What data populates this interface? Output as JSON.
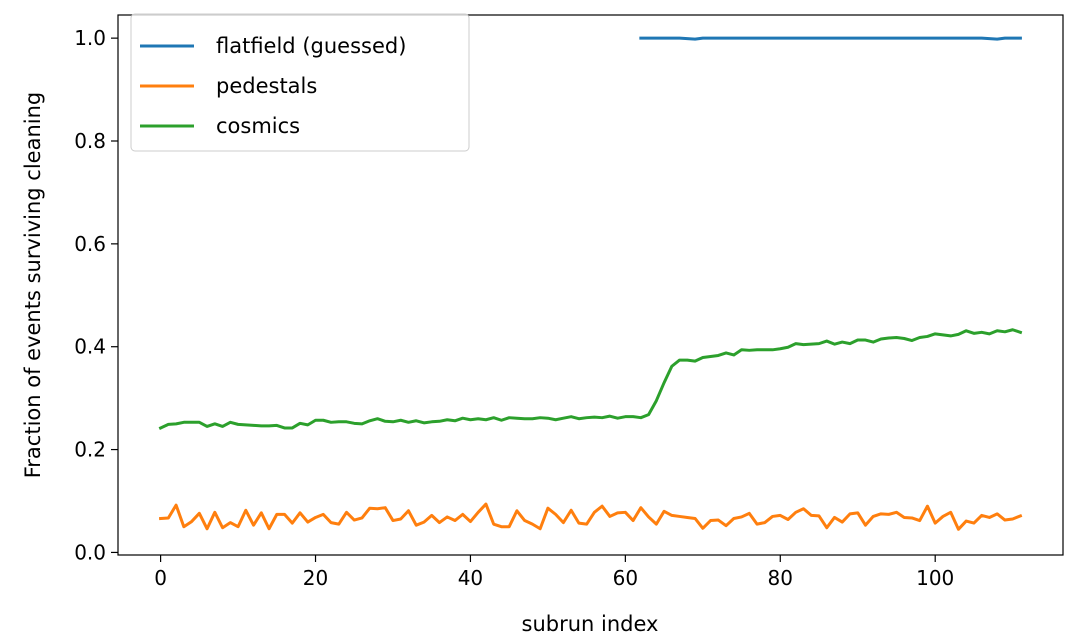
{
  "chart_data": {
    "type": "line",
    "title": "",
    "xlabel": "subrun index",
    "ylabel": "Fraction of events surviving cleaning",
    "xlim": [
      -5.5,
      116.5
    ],
    "ylim": [
      -0.005,
      1.045
    ],
    "x_ticks": [
      0,
      20,
      40,
      60,
      80,
      100
    ],
    "y_ticks": [
      0.0,
      0.2,
      0.4,
      0.6,
      0.8,
      1.0
    ],
    "x_tick_labels": [
      "0",
      "20",
      "40",
      "60",
      "80",
      "100"
    ],
    "y_tick_labels": [
      "0.0",
      "0.2",
      "0.4",
      "0.6",
      "0.8",
      "1.0"
    ],
    "grid": false,
    "legend_position": "top-left",
    "series": [
      {
        "name": "flatfield (guessed)",
        "color": "#1f77b4",
        "x": [
          62,
          63,
          64,
          65,
          66,
          67,
          68,
          69,
          70,
          71,
          72,
          73,
          74,
          75,
          76,
          77,
          78,
          79,
          80,
          81,
          82,
          83,
          84,
          85,
          86,
          87,
          88,
          89,
          90,
          91,
          92,
          93,
          94,
          95,
          96,
          97,
          98,
          99,
          100,
          101,
          102,
          103,
          104,
          105,
          106,
          107,
          108,
          109,
          110,
          111
        ],
        "y": [
          1.0,
          1.0,
          1.0,
          1.0,
          1.0,
          1.0,
          0.999,
          0.998,
          1.0,
          1.0,
          1.0,
          1.0,
          1.0,
          1.0,
          1.0,
          1.0,
          1.0,
          1.0,
          1.0,
          1.0,
          1.0,
          1.0,
          1.0,
          1.0,
          1.0,
          1.0,
          1.0,
          1.0,
          1.0,
          1.0,
          1.0,
          1.0,
          1.0,
          1.0,
          1.0,
          1.0,
          1.0,
          1.0,
          1.0,
          1.0,
          1.0,
          1.0,
          1.0,
          1.0,
          1.0,
          0.999,
          0.998,
          1.0,
          1.0,
          1.0
        ]
      },
      {
        "name": "pedestals",
        "color": "#ff7f0e",
        "x": [
          0,
          1,
          2,
          3,
          4,
          5,
          6,
          7,
          8,
          9,
          10,
          11,
          12,
          13,
          14,
          15,
          16,
          17,
          18,
          19,
          20,
          21,
          22,
          23,
          24,
          25,
          26,
          27,
          28,
          29,
          30,
          31,
          32,
          33,
          34,
          35,
          36,
          37,
          38,
          39,
          40,
          41,
          42,
          43,
          44,
          45,
          46,
          47,
          48,
          49,
          50,
          51,
          52,
          53,
          54,
          55,
          56,
          57,
          58,
          59,
          60,
          61,
          62,
          63,
          64,
          65,
          66,
          67,
          68,
          69,
          70,
          71,
          72,
          73,
          74,
          75,
          76,
          77,
          78,
          79,
          80,
          81,
          82,
          83,
          84,
          85,
          86,
          87,
          88,
          89,
          90,
          91,
          92,
          93,
          94,
          95,
          96,
          97,
          98,
          99,
          100,
          101,
          102,
          103,
          104,
          105,
          106,
          107,
          108,
          109,
          110,
          111
        ],
        "y": [
          0.066,
          0.067,
          0.092,
          0.05,
          0.06,
          0.076,
          0.046,
          0.078,
          0.048,
          0.058,
          0.05,
          0.082,
          0.053,
          0.077,
          0.046,
          0.074,
          0.074,
          0.057,
          0.077,
          0.059,
          0.068,
          0.074,
          0.058,
          0.055,
          0.078,
          0.063,
          0.067,
          0.086,
          0.085,
          0.087,
          0.062,
          0.065,
          0.081,
          0.053,
          0.059,
          0.072,
          0.058,
          0.069,
          0.062,
          0.074,
          0.06,
          0.078,
          0.094,
          0.055,
          0.05,
          0.05,
          0.081,
          0.062,
          0.055,
          0.046,
          0.086,
          0.074,
          0.058,
          0.082,
          0.057,
          0.055,
          0.078,
          0.09,
          0.07,
          0.077,
          0.078,
          0.062,
          0.087,
          0.069,
          0.055,
          0.08,
          0.072,
          0.07,
          0.068,
          0.066,
          0.047,
          0.062,
          0.063,
          0.052,
          0.066,
          0.069,
          0.076,
          0.055,
          0.058,
          0.07,
          0.072,
          0.064,
          0.078,
          0.085,
          0.072,
          0.071,
          0.048,
          0.068,
          0.059,
          0.075,
          0.077,
          0.053,
          0.07,
          0.075,
          0.074,
          0.078,
          0.068,
          0.067,
          0.062,
          0.09,
          0.057,
          0.07,
          0.078,
          0.045,
          0.061,
          0.057,
          0.072,
          0.068,
          0.075,
          0.063,
          0.065,
          0.071
        ]
      },
      {
        "name": "cosmics",
        "color": "#2ca02c",
        "x": [
          0,
          1,
          2,
          3,
          4,
          5,
          6,
          7,
          8,
          9,
          10,
          11,
          12,
          13,
          14,
          15,
          16,
          17,
          18,
          19,
          20,
          21,
          22,
          23,
          24,
          25,
          26,
          27,
          28,
          29,
          30,
          31,
          32,
          33,
          34,
          35,
          36,
          37,
          38,
          39,
          40,
          41,
          42,
          43,
          44,
          45,
          46,
          47,
          48,
          49,
          50,
          51,
          52,
          53,
          54,
          55,
          56,
          57,
          58,
          59,
          60,
          61,
          62,
          63,
          64,
          65,
          66,
          67,
          68,
          69,
          70,
          71,
          72,
          73,
          74,
          75,
          76,
          77,
          78,
          79,
          80,
          81,
          82,
          83,
          84,
          85,
          86,
          87,
          88,
          89,
          90,
          91,
          92,
          93,
          94,
          95,
          96,
          97,
          98,
          99,
          100,
          101,
          102,
          103,
          104,
          105,
          106,
          107,
          108,
          109,
          110,
          111
        ],
        "y": [
          0.242,
          0.249,
          0.25,
          0.253,
          0.253,
          0.253,
          0.245,
          0.25,
          0.245,
          0.253,
          0.249,
          0.248,
          0.247,
          0.246,
          0.246,
          0.247,
          0.242,
          0.242,
          0.251,
          0.248,
          0.257,
          0.257,
          0.253,
          0.254,
          0.254,
          0.251,
          0.25,
          0.256,
          0.26,
          0.255,
          0.254,
          0.257,
          0.253,
          0.256,
          0.252,
          0.254,
          0.255,
          0.258,
          0.256,
          0.261,
          0.258,
          0.26,
          0.258,
          0.262,
          0.257,
          0.262,
          0.261,
          0.26,
          0.26,
          0.262,
          0.261,
          0.258,
          0.261,
          0.264,
          0.26,
          0.262,
          0.263,
          0.262,
          0.265,
          0.261,
          0.264,
          0.264,
          0.262,
          0.268,
          0.295,
          0.33,
          0.362,
          0.374,
          0.374,
          0.372,
          0.379,
          0.381,
          0.383,
          0.388,
          0.384,
          0.394,
          0.393,
          0.394,
          0.394,
          0.394,
          0.396,
          0.399,
          0.406,
          0.404,
          0.405,
          0.406,
          0.411,
          0.405,
          0.409,
          0.406,
          0.413,
          0.413,
          0.409,
          0.415,
          0.417,
          0.418,
          0.416,
          0.412,
          0.418,
          0.42,
          0.425,
          0.423,
          0.421,
          0.424,
          0.431,
          0.426,
          0.428,
          0.425,
          0.431,
          0.429,
          0.433,
          0.428
        ]
      }
    ]
  }
}
